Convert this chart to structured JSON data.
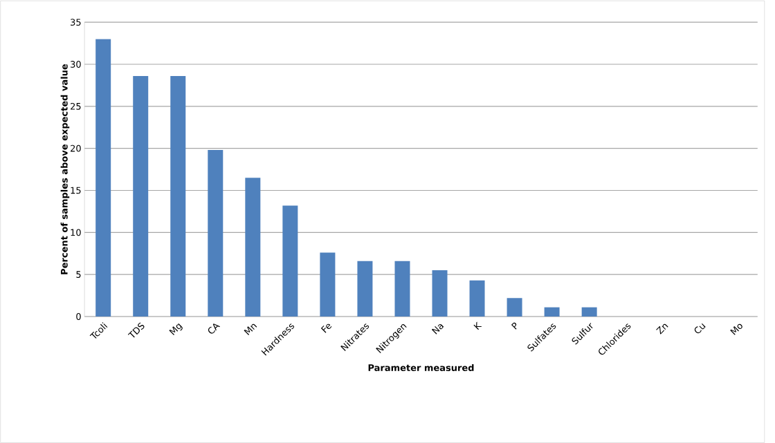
{
  "chart_data": {
    "type": "bar",
    "xlabel": "Parameter measured",
    "ylabel": "Percent of samples above expected value",
    "categories": [
      "Tcoli",
      "TDS",
      "Mg",
      "CA",
      "Mn",
      "Hardness",
      "Fe",
      "Nitrates",
      "Nitrogen",
      "Na",
      "K",
      "P",
      "Sulfates",
      "Sulfur",
      "Chlorides",
      "Zn",
      "Cu",
      "Mo"
    ],
    "values": [
      33,
      28.6,
      28.6,
      19.8,
      16.5,
      13.2,
      7.6,
      6.6,
      6.6,
      5.5,
      4.3,
      2.2,
      1.1,
      1.1,
      0,
      0,
      0,
      0
    ],
    "color": "#4f81bd",
    "ylim": [
      0,
      35
    ],
    "yticks": [
      0,
      5,
      10,
      15,
      20,
      25,
      30,
      35
    ],
    "grid": "y"
  }
}
